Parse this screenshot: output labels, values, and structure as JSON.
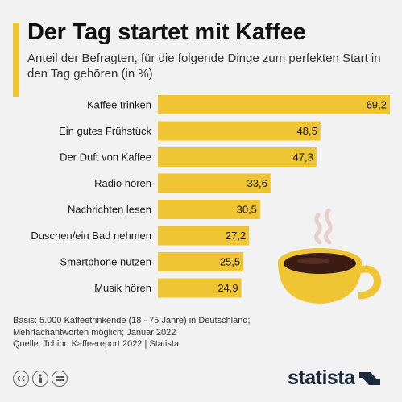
{
  "title": "Der Tag startet mit Kaffee",
  "subtitle": "Anteil der Befragten, für die folgende Dinge zum perfekten Start in den Tag gehören (in %)",
  "colors": {
    "bar": "#f0c533",
    "accent": "#f0c533",
    "background": "#f2f2f2",
    "cup": "#f0c533",
    "coffee": "#3a1c14",
    "steam": "#e7cfd0",
    "logo": "#1b2a3c"
  },
  "chart_data": {
    "type": "bar",
    "orientation": "horizontal",
    "categories": [
      "Kaffee trinken",
      "Ein gutes Frühstück",
      "Der Duft von Kaffee",
      "Radio hören",
      "Nachrichten lesen",
      "Duschen/ein Bad nehmen",
      "Smartphone nutzen",
      "Musik hören"
    ],
    "values": [
      69.2,
      48.5,
      47.3,
      33.6,
      30.5,
      27.2,
      25.5,
      24.9
    ],
    "value_labels": [
      "69,2",
      "48,5",
      "47,3",
      "33,6",
      "30,5",
      "27,2",
      "25,5",
      "24,9"
    ],
    "xlim": [
      0,
      69.2
    ],
    "grid": false,
    "legend": "none"
  },
  "footer": {
    "basis_line1": "Basis: 5.000 Kaffeetrinkende (18 - 75 Jahre) in Deutschland;",
    "basis_line2": "Mehrfachantworten möglich; Januar 2022",
    "source": "Quelle: Tchibo Kaffeereport 2022 | Statista"
  },
  "license_icons": [
    "cc-icon",
    "by-icon",
    "nd-icon"
  ],
  "logo_text": "statista"
}
